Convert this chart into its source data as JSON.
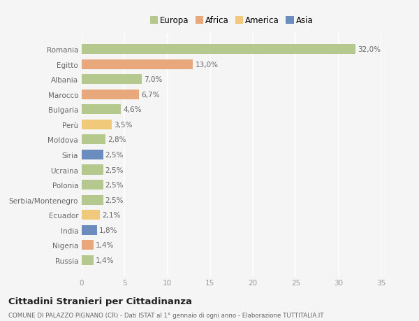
{
  "countries": [
    "Romania",
    "Egitto",
    "Albania",
    "Marocco",
    "Bulgaria",
    "Perù",
    "Moldova",
    "Siria",
    "Ucraina",
    "Polonia",
    "Serbia/Montenegro",
    "Ecuador",
    "India",
    "Nigeria",
    "Russia"
  ],
  "values": [
    32.0,
    13.0,
    7.0,
    6.7,
    4.6,
    3.5,
    2.8,
    2.5,
    2.5,
    2.5,
    2.5,
    2.1,
    1.8,
    1.4,
    1.4
  ],
  "labels": [
    "32,0%",
    "13,0%",
    "7,0%",
    "6,7%",
    "4,6%",
    "3,5%",
    "2,8%",
    "2,5%",
    "2,5%",
    "2,5%",
    "2,5%",
    "2,1%",
    "1,8%",
    "1,4%",
    "1,4%"
  ],
  "colors": [
    "#b5c98e",
    "#e8a87c",
    "#b5c98e",
    "#e8a87c",
    "#b5c98e",
    "#f0c97a",
    "#b5c98e",
    "#6b8cbf",
    "#b5c98e",
    "#b5c98e",
    "#b5c98e",
    "#f0c97a",
    "#6b8cbf",
    "#e8a87c",
    "#b5c98e"
  ],
  "legend_labels": [
    "Europa",
    "Africa",
    "America",
    "Asia"
  ],
  "legend_colors": [
    "#b5c98e",
    "#e8a87c",
    "#f0c97a",
    "#6b8cbf"
  ],
  "title": "Cittadini Stranieri per Cittadinanza",
  "subtitle": "COMUNE DI PALAZZO PIGNANO (CR) - Dati ISTAT al 1° gennaio di ogni anno - Elaborazione TUTTITALIA.IT",
  "xlim": [
    0,
    35
  ],
  "xticks": [
    0,
    5,
    10,
    15,
    20,
    25,
    30,
    35
  ],
  "background_color": "#f5f5f5",
  "bar_height": 0.65
}
